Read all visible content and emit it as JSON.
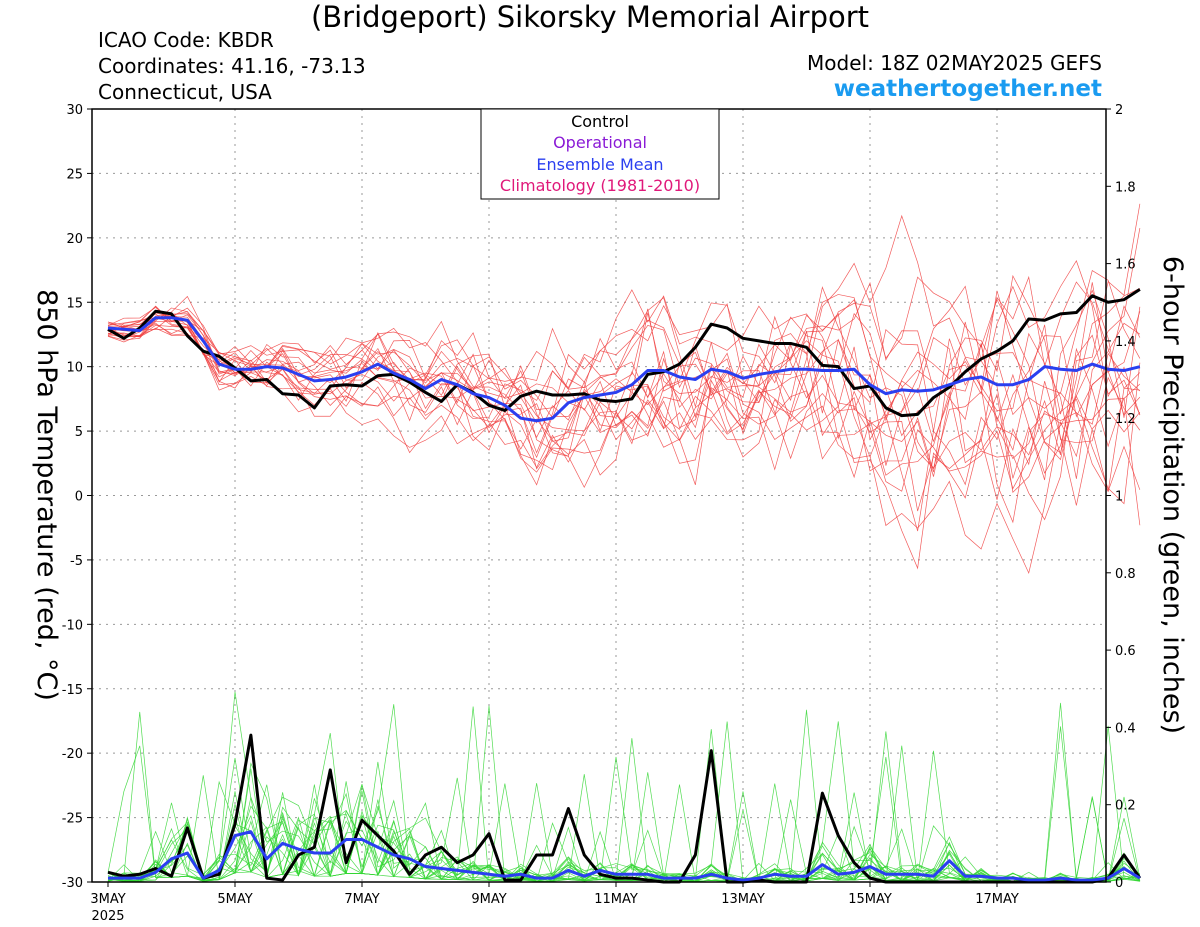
{
  "header": {
    "title": "(Bridgeport) Sikorsky Memorial Airport",
    "icao": "ICAO Code: KBDR",
    "coordinates": "Coordinates: 41.16, -73.13",
    "region": "Connecticut, USA",
    "model": "Model: 18Z 02MAY2025 GEFS",
    "site": "weathertogether.net"
  },
  "colors": {
    "members_temp": "#f04040",
    "members_precip": "#33d633",
    "control": "#000000",
    "operational": "#8a1ad6",
    "ensemble_mean": "#2a3ff0",
    "climatology": "#e0197a",
    "site": "#1a9bf0"
  },
  "chart_data": {
    "type": "line",
    "x_axis": {
      "ticks": [
        "3MAY",
        "5MAY",
        "7MAY",
        "9MAY",
        "11MAY",
        "13MAY",
        "15MAY",
        "17MAY"
      ],
      "tick_days": [
        0,
        2,
        4,
        6,
        8,
        10,
        12,
        14
      ],
      "year_label": "2025",
      "start": "03MAY2025 00Z",
      "step_hours": 6
    },
    "left_axis": {
      "label": "850 hPa Temperature (red, °C)",
      "ylim": [
        -30,
        30
      ],
      "ticks": [
        30,
        25,
        20,
        15,
        10,
        5,
        0,
        -5,
        -10,
        -15,
        -20,
        -25,
        -30
      ]
    },
    "right_axis": {
      "label": "6-hour Precipitation (green, inches)",
      "ylim": [
        0,
        2
      ],
      "ticks": [
        "2",
        "1.8",
        "1.6",
        "1.4",
        "1.2",
        "1",
        "0.8",
        "0.6",
        "0.4",
        "0.2",
        "0"
      ]
    },
    "grid": true,
    "legend": {
      "placement": "top-center",
      "entries": [
        "Control",
        "Operational",
        "Ensemble Mean",
        "Climatology (1981-2010)"
      ]
    },
    "series": [
      {
        "name": "Control",
        "variable": "temperature",
        "values": [
          12.9,
          12.2,
          13.0,
          14.3,
          14.1,
          12.4,
          11.2,
          10.8,
          9.9,
          8.9,
          9.0,
          7.9,
          7.8,
          6.8,
          8.5,
          8.6,
          8.5,
          9.3,
          9.4,
          8.8,
          8.0,
          7.3,
          8.6,
          8.0,
          7.0,
          6.6,
          7.7,
          8.1,
          7.8,
          7.8,
          7.9,
          7.4,
          7.3,
          7.5,
          9.4,
          9.6,
          10.2,
          11.5,
          13.3,
          13.0,
          12.2,
          12.0,
          11.8,
          11.8,
          11.5,
          10.1,
          10.0,
          8.3,
          8.5,
          6.8,
          6.2,
          6.3,
          7.6,
          8.4,
          9.6,
          10.6,
          11.2,
          12.0,
          13.7,
          13.6,
          14.1,
          14.2,
          15.5,
          15.0,
          15.2,
          16.0
        ]
      },
      {
        "name": "Ensemble Mean",
        "variable": "temperature",
        "values": [
          13.0,
          12.9,
          12.8,
          13.8,
          13.8,
          13.6,
          12.0,
          10.2,
          9.8,
          9.8,
          10.0,
          9.9,
          9.4,
          8.9,
          9.0,
          9.2,
          9.6,
          10.2,
          9.5,
          9.0,
          8.3,
          9.0,
          8.6,
          7.9,
          7.6,
          7.0,
          6.0,
          5.8,
          6.0,
          7.2,
          7.6,
          7.8,
          8.0,
          8.6,
          9.7,
          9.7,
          9.2,
          9.0,
          9.8,
          9.6,
          9.1,
          9.4,
          9.6,
          9.8,
          9.8,
          9.7,
          9.7,
          9.8,
          8.6,
          7.9,
          8.2,
          8.1,
          8.2,
          8.6,
          9.0,
          9.2,
          8.6,
          8.6,
          9.0,
          10.0,
          9.8,
          9.7,
          10.2,
          9.8,
          9.7,
          10.0
        ]
      },
      {
        "name": "Control",
        "variable": "precipitation",
        "values": [
          0.025,
          0.015,
          0.02,
          0.035,
          0.015,
          0.14,
          0.01,
          0.02,
          0.15,
          0.38,
          0.01,
          0.005,
          0.07,
          0.09,
          0.29,
          0.05,
          0.16,
          0.12,
          0.08,
          0.02,
          0.07,
          0.09,
          0.05,
          0.07,
          0.125,
          0.005,
          0.005,
          0.07,
          0.07,
          0.19,
          0.07,
          0.02,
          0.01,
          0.01,
          0.005,
          0.0,
          0.0,
          0.07,
          0.34,
          0.0,
          0.0,
          0.005,
          0.0,
          0.0,
          0.0,
          0.23,
          0.12,
          0.05,
          0.01,
          0.0,
          0.0,
          0.0,
          0.0,
          0.0,
          0.0,
          0.0,
          0.0,
          0.0,
          0.0,
          0.0,
          0.0,
          0.0,
          0.0,
          0.01,
          0.07,
          0.01
        ]
      },
      {
        "name": "Ensemble Mean",
        "variable": "precipitation",
        "values": [
          0.01,
          0.01,
          0.01,
          0.025,
          0.06,
          0.075,
          0.01,
          0.03,
          0.12,
          0.13,
          0.06,
          0.1,
          0.085,
          0.075,
          0.075,
          0.11,
          0.11,
          0.09,
          0.07,
          0.06,
          0.04,
          0.035,
          0.03,
          0.025,
          0.02,
          0.015,
          0.02,
          0.01,
          0.01,
          0.03,
          0.015,
          0.03,
          0.02,
          0.02,
          0.02,
          0.01,
          0.01,
          0.01,
          0.02,
          0.01,
          0.005,
          0.01,
          0.02,
          0.015,
          0.015,
          0.045,
          0.02,
          0.025,
          0.04,
          0.02,
          0.02,
          0.02,
          0.015,
          0.055,
          0.015,
          0.015,
          0.01,
          0.01,
          0.005,
          0.005,
          0.01,
          0.005,
          0.005,
          0.01,
          0.035,
          0.01
        ]
      }
    ]
  }
}
